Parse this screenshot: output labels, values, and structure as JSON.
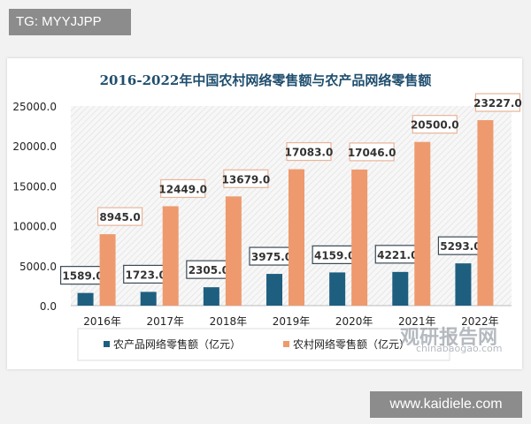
{
  "tag_label": "TG: MYYJJPP",
  "site_label": "www.kaidiele.com",
  "watermark": {
    "text": "观研报告网",
    "url_text": "chinabaogao.com"
  },
  "colors": {
    "series1": "#1e5f80",
    "series2": "#ee9a6e",
    "title": "#1f4e6e"
  },
  "chart_data": {
    "type": "bar",
    "title": "2016-2022年中国农村网络零售额与农产品网络零售额",
    "categories": [
      "2016年",
      "2017年",
      "2018年",
      "2019年",
      "2020年",
      "2021年",
      "2022年"
    ],
    "series": [
      {
        "name": "农产品网络零售额（亿元）",
        "values": [
          1589.0,
          1723.0,
          2305.0,
          3975.0,
          4159.0,
          4221.0,
          5293.0
        ]
      },
      {
        "name": "农村网络零售额（亿元）",
        "values": [
          8945.0,
          12449.0,
          13679.0,
          17083.0,
          17046.0,
          20500.0,
          23227.0
        ]
      }
    ],
    "yticks": [
      "0.0",
      "5000.0",
      "10000.0",
      "15000.0",
      "20000.0",
      "25000.0"
    ],
    "ylim": [
      0,
      25000
    ],
    "xlabel": "",
    "ylabel": "",
    "legend": "bottom",
    "grid": false
  }
}
